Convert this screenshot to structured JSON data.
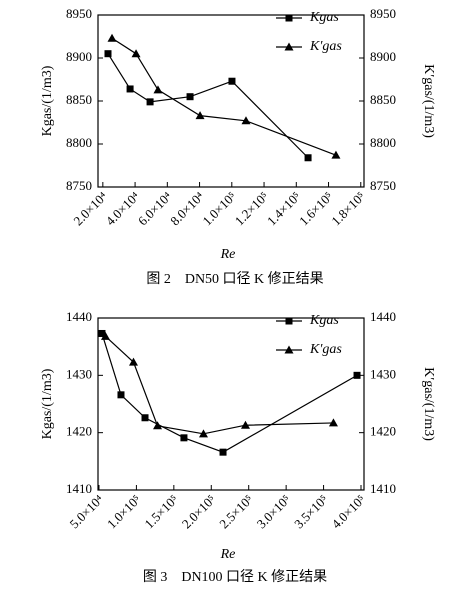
{
  "chart_data": [
    {
      "type": "line",
      "caption": "图 2　DN50 口径 K 修正结果",
      "xlabel": "Re",
      "ylabel": "Kgas/(1/m3)",
      "y2label": "K′gas/(1/m3)",
      "xlim": [
        17000,
        182000
      ],
      "ylim": [
        8750,
        8950
      ],
      "y2lim": [
        8750,
        8950
      ],
      "xticks": [
        {
          "value": 20000,
          "label": "2.0×10⁴"
        },
        {
          "value": 40000,
          "label": "4.0×10⁴"
        },
        {
          "value": 60000,
          "label": "6.0×10⁴"
        },
        {
          "value": 80000,
          "label": "8.0×10⁴"
        },
        {
          "value": 100000,
          "label": "1.0×10⁵"
        },
        {
          "value": 120000,
          "label": "1.2×10⁵"
        },
        {
          "value": 140000,
          "label": "1.4×10⁵"
        },
        {
          "value": 160000,
          "label": "1.6×10⁵"
        },
        {
          "value": 180000,
          "label": "1.8×10⁵"
        }
      ],
      "yticks": [
        8750,
        8800,
        8850,
        8900,
        8950
      ],
      "y2ticks": [
        8750,
        8800,
        8850,
        8900,
        8950
      ],
      "legend": "upper right",
      "series": [
        {
          "name": "Kgas",
          "color": "#000000",
          "marker": "square",
          "x": [
            23200,
            36900,
            49300,
            74100,
            100100,
            147300
          ],
          "values": [
            8905,
            8864,
            8849,
            8855,
            8873,
            8784
          ]
        },
        {
          "name": "K′gas",
          "color": "#000000",
          "marker": "triangle",
          "axis": "y2",
          "x": [
            25700,
            40600,
            54200,
            80300,
            108800,
            164600
          ],
          "values": [
            8923,
            8905,
            8863,
            8833,
            8827,
            8787
          ]
        }
      ]
    },
    {
      "type": "line",
      "caption": "图 3　DN100 口径 K 修正结果",
      "xlabel": "Re",
      "ylabel": "Kgas/(1/m3)",
      "y2label": "K′gas/(1/m3)",
      "xlim": [
        48700,
        404000
      ],
      "ylim": [
        1410,
        1440
      ],
      "y2lim": [
        1410,
        1440
      ],
      "xticks": [
        {
          "value": 50000,
          "label": "5.0×10⁴"
        },
        {
          "value": 100000,
          "label": "1.0×10⁵"
        },
        {
          "value": 150000,
          "label": "1.5×10⁵"
        },
        {
          "value": 200000,
          "label": "2.0×10⁵"
        },
        {
          "value": 250000,
          "label": "2.5×10⁵"
        },
        {
          "value": 300000,
          "label": "3.0×10⁵"
        },
        {
          "value": 350000,
          "label": "3.5×10⁵"
        },
        {
          "value": 400000,
          "label": "4.0×10⁵"
        }
      ],
      "yticks": [
        1410,
        1420,
        1430,
        1440
      ],
      "y2ticks": [
        1410,
        1420,
        1430,
        1440
      ],
      "legend": "upper right",
      "series": [
        {
          "name": "Kgas",
          "color": "#000000",
          "marker": "square",
          "x": [
            54000,
            79400,
            111500,
            163500,
            215700,
            394700
          ],
          "values": [
            1437.3,
            1426.6,
            1422.6,
            1419.1,
            1416.6,
            1430.0
          ]
        },
        {
          "name": "K′gas",
          "color": "#000000",
          "marker": "triangle",
          "axis": "y2",
          "x": [
            58700,
            96100,
            128200,
            189600,
            245700,
            363200
          ],
          "values": [
            1436.8,
            1432.3,
            1421.2,
            1419.8,
            1421.3,
            1421.7
          ]
        }
      ]
    }
  ]
}
